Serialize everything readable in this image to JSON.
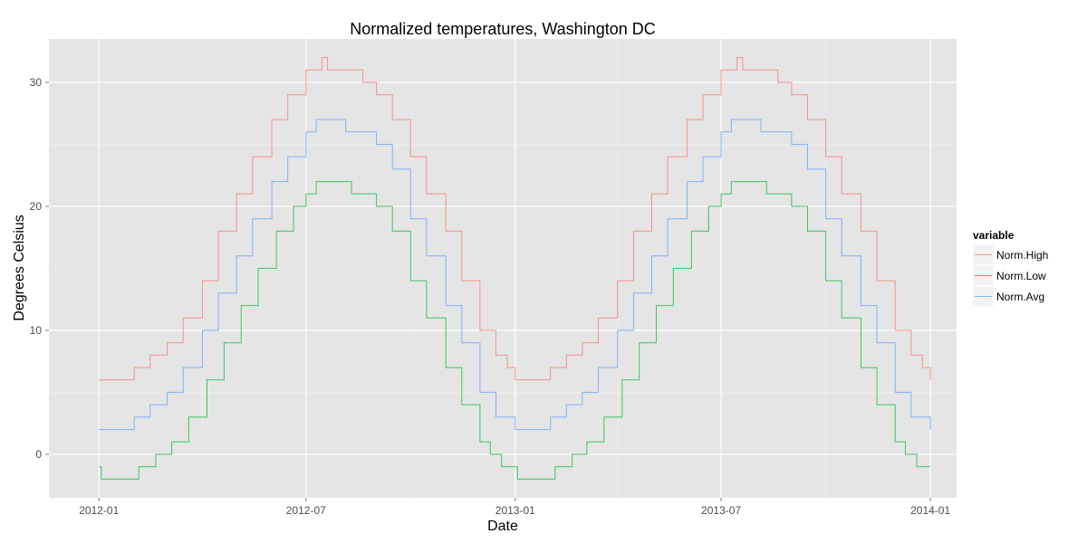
{
  "chart_data": {
    "type": "line",
    "title": "Normalized temperatures, Washington DC",
    "xlabel": "Date",
    "ylabel": "Degrees Celsius",
    "x_range": [
      "2011-11-18",
      "2014-01-24"
    ],
    "y_range": [
      -3.5,
      33.5
    ],
    "x_ticks": [
      {
        "date": "2012-01-01",
        "label": "2012-01"
      },
      {
        "date": "2012-07-01",
        "label": "2012-07"
      },
      {
        "date": "2013-01-01",
        "label": "2013-01"
      },
      {
        "date": "2013-07-01",
        "label": "2013-07"
      },
      {
        "date": "2014-01-01",
        "label": "2014-01"
      }
    ],
    "y_ticks": [
      0,
      10,
      20,
      30
    ],
    "grid": true,
    "legend": {
      "title": "variable",
      "position": "right",
      "entries": [
        "Norm.High",
        "Norm.Low",
        "Norm.Avg"
      ]
    },
    "series": [
      {
        "name": "Norm.High",
        "color": "#F8766D",
        "points": [
          [
            "2012-01-01",
            6
          ],
          [
            "2012-01-20",
            6
          ],
          [
            "2012-02-01",
            7
          ],
          [
            "2012-02-15",
            8
          ],
          [
            "2012-03-01",
            9
          ],
          [
            "2012-03-15",
            11
          ],
          [
            "2012-04-01",
            14
          ],
          [
            "2012-04-15",
            18
          ],
          [
            "2012-05-01",
            21
          ],
          [
            "2012-05-15",
            24
          ],
          [
            "2012-06-01",
            27
          ],
          [
            "2012-06-15",
            29
          ],
          [
            "2012-07-01",
            31
          ],
          [
            "2012-07-10",
            31
          ],
          [
            "2012-07-15",
            32
          ],
          [
            "2012-07-20",
            31
          ],
          [
            "2012-08-10",
            31
          ],
          [
            "2012-08-20",
            30
          ],
          [
            "2012-09-01",
            29
          ],
          [
            "2012-09-15",
            27
          ],
          [
            "2012-10-01",
            24
          ],
          [
            "2012-10-15",
            21
          ],
          [
            "2012-11-01",
            18
          ],
          [
            "2012-11-15",
            14
          ],
          [
            "2012-12-01",
            10
          ],
          [
            "2012-12-15",
            8
          ],
          [
            "2012-12-25",
            7
          ],
          [
            "2013-01-01",
            6
          ],
          [
            "2013-01-20",
            6
          ],
          [
            "2013-02-01",
            7
          ],
          [
            "2013-02-15",
            8
          ],
          [
            "2013-03-01",
            9
          ],
          [
            "2013-03-15",
            11
          ],
          [
            "2013-04-01",
            14
          ],
          [
            "2013-04-15",
            18
          ],
          [
            "2013-05-01",
            21
          ],
          [
            "2013-05-15",
            24
          ],
          [
            "2013-06-01",
            27
          ],
          [
            "2013-06-15",
            29
          ],
          [
            "2013-07-01",
            31
          ],
          [
            "2013-07-10",
            31
          ],
          [
            "2013-07-15",
            32
          ],
          [
            "2013-07-20",
            31
          ],
          [
            "2013-08-10",
            31
          ],
          [
            "2013-08-20",
            30
          ],
          [
            "2013-09-01",
            29
          ],
          [
            "2013-09-15",
            27
          ],
          [
            "2013-10-01",
            24
          ],
          [
            "2013-10-15",
            21
          ],
          [
            "2013-11-01",
            18
          ],
          [
            "2013-11-15",
            14
          ],
          [
            "2013-12-01",
            10
          ],
          [
            "2013-12-15",
            8
          ],
          [
            "2013-12-25",
            7
          ],
          [
            "2014-01-01",
            6
          ]
        ]
      },
      {
        "name": "Norm.Low",
        "color": "#00BA38",
        "points": [
          [
            "2012-01-01",
            -1
          ],
          [
            "2012-01-03",
            -2
          ],
          [
            "2012-02-01",
            -2
          ],
          [
            "2012-02-05",
            -1
          ],
          [
            "2012-02-20",
            0
          ],
          [
            "2012-03-05",
            1
          ],
          [
            "2012-03-20",
            3
          ],
          [
            "2012-04-05",
            6
          ],
          [
            "2012-04-20",
            9
          ],
          [
            "2012-05-05",
            12
          ],
          [
            "2012-05-20",
            15
          ],
          [
            "2012-06-05",
            18
          ],
          [
            "2012-06-20",
            20
          ],
          [
            "2012-07-01",
            21
          ],
          [
            "2012-07-10",
            22
          ],
          [
            "2012-08-05",
            22
          ],
          [
            "2012-08-10",
            21
          ],
          [
            "2012-08-25",
            21
          ],
          [
            "2012-09-01",
            20
          ],
          [
            "2012-09-15",
            18
          ],
          [
            "2012-10-01",
            14
          ],
          [
            "2012-10-15",
            11
          ],
          [
            "2012-11-01",
            7
          ],
          [
            "2012-11-15",
            4
          ],
          [
            "2012-12-01",
            1
          ],
          [
            "2012-12-10",
            0
          ],
          [
            "2012-12-20",
            -1
          ],
          [
            "2013-01-01",
            -1
          ],
          [
            "2013-01-03",
            -2
          ],
          [
            "2013-02-01",
            -2
          ],
          [
            "2013-02-05",
            -1
          ],
          [
            "2013-02-20",
            0
          ],
          [
            "2013-03-05",
            1
          ],
          [
            "2013-03-20",
            3
          ],
          [
            "2013-04-05",
            6
          ],
          [
            "2013-04-20",
            9
          ],
          [
            "2013-05-05",
            12
          ],
          [
            "2013-05-20",
            15
          ],
          [
            "2013-06-05",
            18
          ],
          [
            "2013-06-20",
            20
          ],
          [
            "2013-07-01",
            21
          ],
          [
            "2013-07-10",
            22
          ],
          [
            "2013-08-05",
            22
          ],
          [
            "2013-08-10",
            21
          ],
          [
            "2013-08-25",
            21
          ],
          [
            "2013-09-01",
            20
          ],
          [
            "2013-09-15",
            18
          ],
          [
            "2013-10-01",
            14
          ],
          [
            "2013-10-15",
            11
          ],
          [
            "2013-11-01",
            7
          ],
          [
            "2013-11-15",
            4
          ],
          [
            "2013-12-01",
            1
          ],
          [
            "2013-12-10",
            0
          ],
          [
            "2013-12-20",
            -1
          ],
          [
            "2014-01-01",
            -1
          ]
        ]
      },
      {
        "name": "Norm.Avg",
        "color": "#619CFF",
        "points": [
          [
            "2012-01-01",
            2
          ],
          [
            "2012-01-25",
            2
          ],
          [
            "2012-02-01",
            3
          ],
          [
            "2012-02-15",
            4
          ],
          [
            "2012-03-01",
            5
          ],
          [
            "2012-03-15",
            7
          ],
          [
            "2012-04-01",
            10
          ],
          [
            "2012-04-15",
            13
          ],
          [
            "2012-05-01",
            16
          ],
          [
            "2012-05-15",
            19
          ],
          [
            "2012-06-01",
            22
          ],
          [
            "2012-06-15",
            24
          ],
          [
            "2012-07-01",
            26
          ],
          [
            "2012-07-10",
            27
          ],
          [
            "2012-08-01",
            27
          ],
          [
            "2012-08-05",
            26
          ],
          [
            "2012-08-20",
            26
          ],
          [
            "2012-09-01",
            25
          ],
          [
            "2012-09-15",
            23
          ],
          [
            "2012-10-01",
            19
          ],
          [
            "2012-10-15",
            16
          ],
          [
            "2012-11-01",
            12
          ],
          [
            "2012-11-15",
            9
          ],
          [
            "2012-12-01",
            5
          ],
          [
            "2012-12-15",
            3
          ],
          [
            "2013-01-01",
            2
          ],
          [
            "2013-01-25",
            2
          ],
          [
            "2013-02-01",
            3
          ],
          [
            "2013-02-15",
            4
          ],
          [
            "2013-03-01",
            5
          ],
          [
            "2013-03-15",
            7
          ],
          [
            "2013-04-01",
            10
          ],
          [
            "2013-04-15",
            13
          ],
          [
            "2013-05-01",
            16
          ],
          [
            "2013-05-15",
            19
          ],
          [
            "2013-06-01",
            22
          ],
          [
            "2013-06-15",
            24
          ],
          [
            "2013-07-01",
            26
          ],
          [
            "2013-07-10",
            27
          ],
          [
            "2013-08-01",
            27
          ],
          [
            "2013-08-05",
            26
          ],
          [
            "2013-08-20",
            26
          ],
          [
            "2013-09-01",
            25
          ],
          [
            "2013-09-15",
            23
          ],
          [
            "2013-10-01",
            19
          ],
          [
            "2013-10-15",
            16
          ],
          [
            "2013-11-01",
            12
          ],
          [
            "2013-11-15",
            9
          ],
          [
            "2013-12-01",
            5
          ],
          [
            "2013-12-15",
            3
          ],
          [
            "2014-01-01",
            2
          ]
        ]
      }
    ]
  }
}
